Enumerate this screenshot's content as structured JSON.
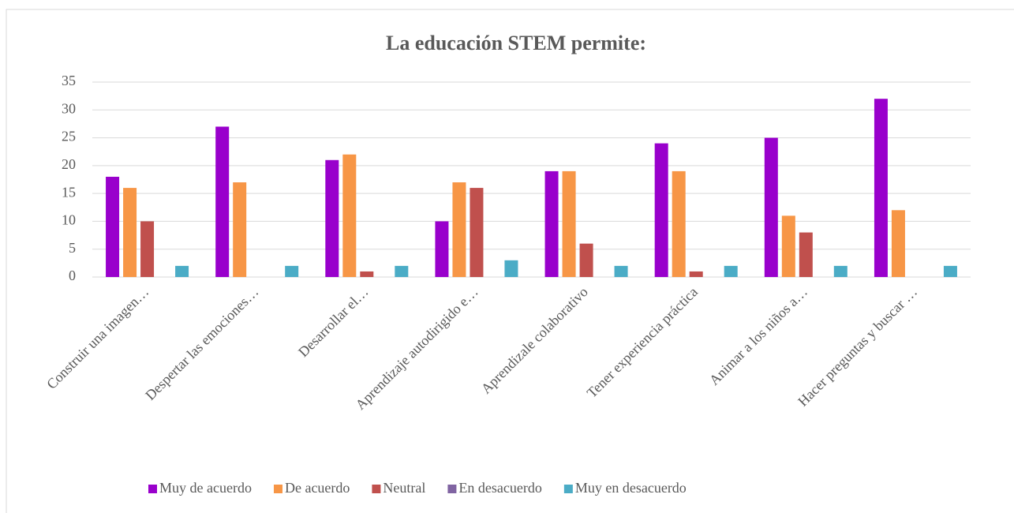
{
  "chart_data": {
    "type": "bar",
    "title": "La educación STEM permite:",
    "categories": [
      "Construir una imagen…",
      "Despertar las emociones…",
      "Desarrollar el…",
      "Aprendizaje autodirigido e…",
      "Aprendizale colaborativo",
      "Tener experiencia práctica",
      "Animar a los niños a…",
      "Hacer preguntas y buscar …"
    ],
    "series": [
      {
        "name": "Muy de acuerdo",
        "color": "#9900cc",
        "values": [
          18,
          27,
          21,
          10,
          19,
          24,
          25,
          32
        ]
      },
      {
        "name": "De acuerdo",
        "color": "#f79646",
        "values": [
          16,
          17,
          22,
          17,
          19,
          19,
          11,
          12
        ]
      },
      {
        "name": "Neutral",
        "color": "#c0504d",
        "values": [
          10,
          0,
          1,
          16,
          6,
          1,
          8,
          0
        ]
      },
      {
        "name": "En desacuerdo",
        "color": "#8064a2",
        "values": [
          0,
          0,
          0,
          0,
          0,
          0,
          0,
          0
        ]
      },
      {
        "name": "Muy en desacuerdo",
        "color": "#4bacc6",
        "values": [
          2,
          2,
          2,
          3,
          2,
          2,
          2,
          2
        ]
      }
    ],
    "ylim": [
      0,
      35
    ],
    "yticks": [
      0,
      5,
      10,
      15,
      20,
      25,
      30,
      35
    ],
    "grid": true,
    "legend": "bottom"
  }
}
